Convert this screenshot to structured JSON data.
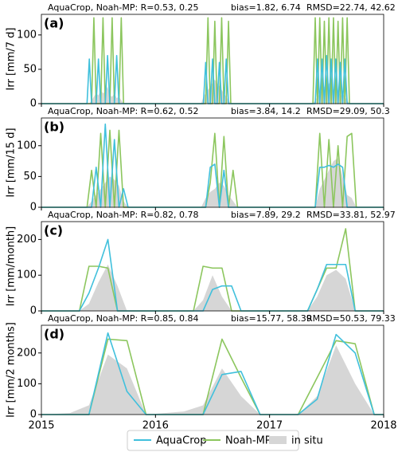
{
  "chart_data": [
    {
      "type": "line",
      "panel_label": "(a)",
      "ylabel": "Irr [mm/7 d]",
      "stats": {
        "r": "AquaCrop, Noah-MP: R=0.53, 0.25",
        "bias": "bias=1.82, 6.74",
        "rmsd": "RMSD=22.74, 42.62"
      },
      "xlim": [
        2015,
        2018
      ],
      "xticks": [
        2015,
        2016,
        2017,
        2018
      ],
      "ylim": [
        0,
        130
      ],
      "yticks": [
        0,
        50,
        100
      ],
      "x": [
        2015,
        2015.38,
        2015.4,
        2015.42,
        2015.44,
        2015.46,
        2015.48,
        2015.5,
        2015.52,
        2015.54,
        2015.56,
        2015.58,
        2015.6,
        2015.62,
        2015.64,
        2015.66,
        2015.68,
        2015.7,
        2015.72,
        2015.74,
        2016.38,
        2016.4,
        2016.42,
        2016.44,
        2016.46,
        2016.48,
        2016.5,
        2016.52,
        2016.54,
        2016.56,
        2016.58,
        2016.6,
        2016.62,
        2016.64,
        2016.66,
        2016.68,
        2016.7,
        2016.72,
        2016.74,
        2017.38,
        2017.4,
        2017.42,
        2017.44,
        2017.46,
        2017.48,
        2017.5,
        2017.52,
        2017.54,
        2017.56,
        2017.58,
        2017.6,
        2017.62,
        2017.64,
        2017.66,
        2017.68,
        2017.7,
        2017.72,
        2017.74,
        2017.76,
        2018
      ],
      "series": [
        {
          "name": "in situ",
          "style": "area",
          "color": "#d6d6d6",
          "values": [
            0,
            0,
            0,
            0,
            5,
            10,
            15,
            12,
            20,
            15,
            18,
            25,
            12,
            10,
            15,
            8,
            10,
            5,
            0,
            0,
            0,
            0,
            10,
            15,
            20,
            25,
            30,
            35,
            30,
            25,
            20,
            15,
            10,
            5,
            0,
            0,
            0,
            0,
            0,
            0,
            5,
            10,
            15,
            20,
            25,
            20,
            30,
            25,
            20,
            15,
            20,
            10,
            15,
            10,
            5,
            0,
            0,
            0,
            0,
            0
          ]
        },
        {
          "name": "Noah-MP",
          "style": "line",
          "color": "#8cc65e",
          "values": [
            0,
            0,
            0,
            0,
            0,
            125,
            0,
            0,
            0,
            125,
            0,
            0,
            0,
            125,
            0,
            0,
            0,
            125,
            0,
            0,
            0,
            0,
            0,
            0,
            125,
            0,
            0,
            120,
            0,
            0,
            125,
            0,
            0,
            120,
            0,
            0,
            0,
            0,
            0,
            0,
            125,
            0,
            125,
            0,
            120,
            0,
            125,
            0,
            125,
            0,
            120,
            0,
            125,
            0,
            125,
            0,
            0,
            0,
            0,
            0
          ]
        },
        {
          "name": "AquaCrop",
          "style": "line",
          "color": "#40c0dc",
          "values": [
            0,
            0,
            0,
            65,
            0,
            0,
            0,
            65,
            0,
            0,
            0,
            70,
            0,
            0,
            0,
            70,
            0,
            0,
            0,
            0,
            0,
            0,
            0,
            60,
            0,
            0,
            65,
            0,
            0,
            60,
            0,
            0,
            65,
            0,
            0,
            0,
            0,
            0,
            0,
            0,
            0,
            65,
            0,
            65,
            0,
            70,
            0,
            65,
            0,
            65,
            0,
            60,
            0,
            65,
            0,
            0,
            0,
            0,
            0,
            0
          ]
        }
      ]
    },
    {
      "type": "line",
      "panel_label": "(b)",
      "ylabel": "Irr [mm/15 d]",
      "stats": {
        "r": "AquaCrop, Noah-MP: R=0.62, 0.52",
        "bias": "bias=3.84, 14.2",
        "rmsd": "RMSD=29.09, 50.3"
      },
      "xlim": [
        2015,
        2018
      ],
      "xticks": [
        2015,
        2016,
        2017,
        2018
      ],
      "ylim": [
        0,
        145
      ],
      "yticks": [
        0,
        50,
        100
      ],
      "x": [
        2015,
        2015.36,
        2015.4,
        2015.44,
        2015.48,
        2015.52,
        2015.56,
        2015.6,
        2015.64,
        2015.68,
        2015.72,
        2015.76,
        2016.36,
        2016.4,
        2016.44,
        2016.48,
        2016.52,
        2016.56,
        2016.6,
        2016.64,
        2016.68,
        2016.72,
        2016.76,
        2017.36,
        2017.4,
        2017.44,
        2017.48,
        2017.52,
        2017.56,
        2017.6,
        2017.64,
        2017.68,
        2017.72,
        2017.76,
        2018
      ],
      "series": [
        {
          "style": "area",
          "color": "#d6d6d6",
          "values": [
            0,
            0,
            0,
            10,
            20,
            30,
            40,
            50,
            45,
            35,
            10,
            0,
            0,
            0,
            15,
            25,
            30,
            40,
            35,
            20,
            10,
            0,
            0,
            0,
            0,
            30,
            45,
            60,
            75,
            80,
            50,
            20,
            15,
            0,
            0
          ]
        },
        {
          "style": "line",
          "color": "#8cc65e",
          "values": [
            0,
            0,
            0,
            60,
            0,
            120,
            0,
            125,
            0,
            125,
            0,
            0,
            0,
            0,
            0,
            40,
            120,
            0,
            115,
            0,
            60,
            0,
            0,
            0,
            0,
            120,
            0,
            110,
            0,
            100,
            0,
            115,
            120,
            0,
            0
          ]
        },
        {
          "style": "line",
          "color": "#40c0dc",
          "values": [
            0,
            0,
            0,
            0,
            65,
            0,
            135,
            0,
            110,
            0,
            30,
            0,
            0,
            0,
            0,
            65,
            70,
            0,
            60,
            0,
            0,
            0,
            0,
            0,
            0,
            65,
            65,
            68,
            65,
            70,
            65,
            0,
            0,
            0,
            0
          ]
        }
      ]
    },
    {
      "type": "line",
      "panel_label": "(c)",
      "ylabel": "Irr [mm/month]",
      "stats": {
        "r": "AquaCrop, Noah-MP: R=0.82, 0.78",
        "bias": "bias=7.89, 29.2",
        "rmsd": "RMSD=33.81, 52.97"
      },
      "xlim": [
        2015,
        2018
      ],
      "xticks": [
        2015,
        2016,
        2017,
        2018
      ],
      "ylim": [
        0,
        250
      ],
      "yticks": [
        0,
        100,
        200
      ],
      "x": [
        2015,
        2015.333,
        2015.417,
        2015.5,
        2015.583,
        2015.667,
        2015.75,
        2015.833,
        2016.333,
        2016.417,
        2016.5,
        2016.583,
        2016.667,
        2016.75,
        2016.833,
        2017.333,
        2017.417,
        2017.5,
        2017.583,
        2017.667,
        2017.75,
        2017.833,
        2018
      ],
      "series": [
        {
          "style": "area",
          "color": "#d6d6d6",
          "values": [
            0,
            0,
            20,
            80,
            130,
            70,
            0,
            0,
            0,
            30,
            100,
            40,
            0,
            0,
            0,
            0,
            40,
            100,
            115,
            90,
            0,
            0,
            0
          ]
        },
        {
          "style": "line",
          "color": "#8cc65e",
          "values": [
            0,
            0,
            125,
            125,
            120,
            0,
            0,
            0,
            0,
            125,
            120,
            120,
            0,
            0,
            0,
            0,
            60,
            120,
            120,
            230,
            0,
            0,
            0
          ]
        },
        {
          "style": "line",
          "color": "#40c0dc",
          "values": [
            0,
            0,
            50,
            120,
            200,
            0,
            0,
            0,
            0,
            0,
            60,
            70,
            70,
            0,
            0,
            0,
            60,
            130,
            130,
            130,
            0,
            0,
            0
          ]
        }
      ]
    },
    {
      "type": "line",
      "panel_label": "(d)",
      "ylabel": "Irr [mm/2 months]",
      "stats": {
        "r": "AquaCrop, Noah-MP: R=0.85, 0.84",
        "bias": "bias=15.77, 58.39",
        "rmsd": "RMSD=50.53, 79.33"
      },
      "xlim": [
        2015,
        2018
      ],
      "xticks": [
        2015,
        2016,
        2017,
        2018
      ],
      "ylim": [
        0,
        290
      ],
      "yticks": [
        0,
        100,
        200
      ],
      "x": [
        2015,
        2015.25,
        2015.417,
        2015.583,
        2015.75,
        2015.917,
        2016.25,
        2016.417,
        2016.583,
        2016.75,
        2016.917,
        2017.25,
        2017.417,
        2017.583,
        2017.75,
        2017.917,
        2018
      ],
      "series": [
        {
          "style": "area",
          "color": "#d6d6d6",
          "values": [
            0,
            5,
            30,
            195,
            150,
            0,
            10,
            30,
            150,
            60,
            0,
            0,
            60,
            225,
            100,
            0,
            0
          ]
        },
        {
          "style": "line",
          "color": "#8cc65e",
          "values": [
            0,
            0,
            0,
            245,
            240,
            0,
            0,
            0,
            245,
            120,
            0,
            0,
            120,
            240,
            230,
            0,
            0
          ]
        },
        {
          "style": "line",
          "color": "#40c0dc",
          "values": [
            0,
            0,
            0,
            265,
            75,
            0,
            0,
            0,
            130,
            140,
            0,
            0,
            50,
            260,
            200,
            0,
            0
          ]
        }
      ]
    }
  ]
}
